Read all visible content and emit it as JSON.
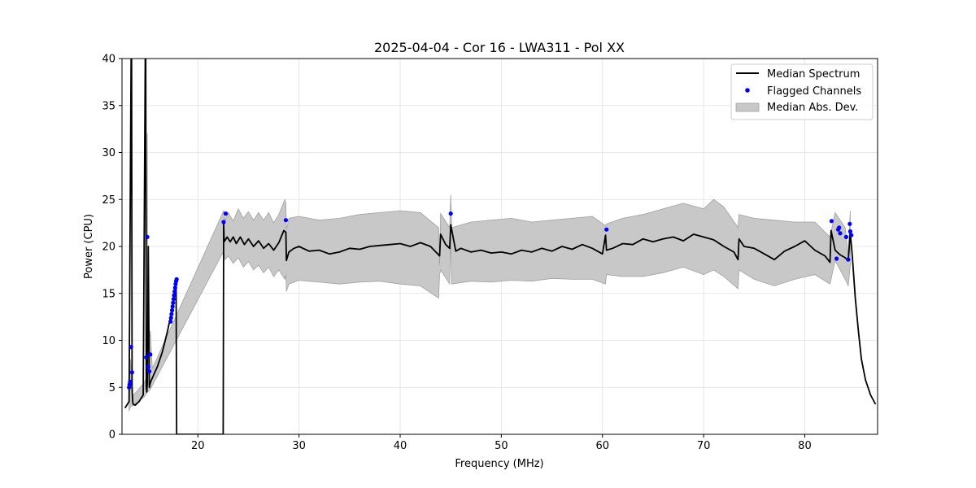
{
  "chart_data": {
    "type": "line",
    "title": "2025-04-04 - Cor 16 - LWA311 - Pol XX",
    "xlabel": "Frequency (MHz)",
    "ylabel": "Power (CPU)",
    "xlim": [
      12.5,
      87.2
    ],
    "ylim": [
      0,
      40
    ],
    "xticks": [
      20,
      30,
      40,
      50,
      60,
      70,
      80
    ],
    "yticks": [
      0,
      5,
      10,
      15,
      20,
      25,
      30,
      35,
      40
    ],
    "grid": true,
    "legend_position": "top-right",
    "legend": [
      "Median Spectrum",
      "Flagged Channels",
      "Median Abs. Dev."
    ],
    "colors": {
      "median": "#000000",
      "flagged": "#0000ff",
      "mad_fill": "#c8c8c8",
      "mad_edge": "#a0a0a0"
    },
    "series": [
      {
        "name": "Median Spectrum",
        "type": "line",
        "x": [
          12.8,
          13.2,
          13.4,
          13.45,
          13.5,
          13.55,
          13.6,
          13.8,
          14.2,
          14.6,
          14.8,
          14.85,
          14.9,
          14.95,
          15.0,
          15.1,
          15.2,
          15.3,
          15.5,
          16.0,
          16.5,
          17.0,
          17.4,
          17.7,
          17.85,
          17.9,
          17.95,
          20.0,
          22.5,
          22.55,
          22.6,
          22.9,
          23.2,
          23.5,
          23.8,
          24.2,
          24.6,
          25.0,
          25.5,
          26.0,
          26.5,
          27.0,
          27.5,
          28.0,
          28.5,
          28.7,
          28.75,
          29.0,
          29.5,
          30.0,
          31.0,
          32.0,
          33.0,
          34.0,
          35.0,
          36.0,
          37.0,
          38.0,
          39.0,
          40.0,
          41.0,
          42.0,
          43.0,
          43.9,
          44.0,
          44.5,
          44.9,
          45.0,
          45.5,
          46.0,
          47.0,
          48.0,
          49.0,
          50.0,
          51.0,
          52.0,
          53.0,
          54.0,
          55.0,
          56.0,
          57.0,
          58.0,
          59.0,
          60.0,
          60.3,
          60.4,
          61.0,
          62.0,
          63.0,
          64.0,
          65.0,
          66.0,
          67.0,
          68.0,
          69.0,
          70.0,
          71.0,
          72.0,
          73.0,
          73.4,
          73.5,
          74.0,
          75.0,
          76.0,
          77.0,
          78.0,
          79.0,
          80.0,
          81.0,
          82.0,
          82.5,
          82.6,
          83.0,
          83.5,
          84.0,
          84.3,
          84.5,
          84.7,
          85.0,
          85.3,
          85.6,
          86.0,
          86.5,
          87.0
        ],
        "y": [
          2.8,
          3.5,
          40,
          40,
          5.0,
          3.5,
          3.2,
          3.1,
          3.5,
          4.2,
          40,
          40,
          5.0,
          4.5,
          5.5,
          20.0,
          5.0,
          5.5,
          6.0,
          7.2,
          8.8,
          11.0,
          13.0,
          15.0,
          16.2,
          0,
          0,
          0,
          0,
          22.5,
          20.5,
          21.0,
          20.5,
          21.0,
          20.3,
          21.0,
          20.2,
          20.8,
          20.0,
          20.6,
          19.8,
          20.3,
          19.6,
          20.4,
          21.7,
          21.5,
          18.5,
          19.4,
          19.8,
          20.0,
          19.5,
          19.6,
          19.2,
          19.4,
          19.8,
          19.7,
          20.0,
          20.1,
          20.2,
          20.3,
          20.0,
          20.4,
          20.0,
          19.0,
          21.3,
          20.2,
          19.8,
          22.3,
          19.5,
          19.8,
          19.4,
          19.6,
          19.3,
          19.4,
          19.2,
          19.6,
          19.4,
          19.8,
          19.5,
          20.0,
          19.7,
          20.2,
          19.8,
          19.2,
          21.2,
          19.6,
          19.8,
          20.3,
          20.2,
          20.8,
          20.5,
          20.8,
          21.0,
          20.6,
          21.3,
          21.0,
          20.7,
          20.0,
          19.4,
          18.6,
          20.8,
          20.0,
          19.8,
          19.2,
          18.6,
          19.5,
          20.0,
          20.6,
          19.6,
          19.0,
          18.3,
          21.7,
          19.6,
          19.1,
          18.8,
          18.5,
          21.5,
          19.0,
          14.5,
          11.0,
          8.0,
          5.8,
          4.2,
          3.2
        ],
        "line_width": 1.8
      },
      {
        "name": "Flagged Channels",
        "type": "scatter",
        "x": [
          13.2,
          13.25,
          13.3,
          13.4,
          13.5,
          14.9,
          15.0,
          15.1,
          15.2,
          15.3,
          17.3,
          17.35,
          17.4,
          17.45,
          17.5,
          17.55,
          17.6,
          17.65,
          17.7,
          17.75,
          17.8,
          17.85,
          17.9,
          22.55,
          22.75,
          28.7,
          45.0,
          60.4,
          82.65,
          83.15,
          83.3,
          83.4,
          83.5,
          84.1,
          84.3,
          84.45,
          84.5,
          84.6
        ],
        "y": [
          5.0,
          5.3,
          5.6,
          9.3,
          6.6,
          8.2,
          21.0,
          7.2,
          6.7,
          8.5,
          12.0,
          12.4,
          12.8,
          13.2,
          13.6,
          14.0,
          14.4,
          14.8,
          15.2,
          15.6,
          16.0,
          16.3,
          16.5,
          22.6,
          23.5,
          22.8,
          23.5,
          21.8,
          22.7,
          18.7,
          21.8,
          22.0,
          21.4,
          21.0,
          18.6,
          22.4,
          21.6,
          21.2
        ]
      },
      {
        "name": "Median Abs. Dev.",
        "type": "band",
        "x": [
          13.2,
          13.35,
          13.5,
          14.7,
          14.9,
          15.0,
          15.05,
          15.3,
          15.5,
          22.55,
          22.7,
          23.0,
          23.5,
          24.0,
          24.5,
          25.0,
          25.5,
          26.0,
          26.5,
          27.0,
          27.5,
          28.0,
          28.6,
          28.7,
          28.75,
          29.0,
          30.0,
          32.0,
          34.0,
          36.0,
          38.0,
          40.0,
          42.0,
          43.8,
          43.9,
          44.0,
          44.9,
          45.0,
          45.1,
          47.0,
          49.0,
          51.0,
          53.0,
          55.0,
          57.0,
          59.0,
          60.3,
          60.4,
          62.0,
          64.0,
          66.0,
          67.0,
          68.0,
          70.0,
          71.0,
          72.0,
          73.4,
          73.5,
          75.0,
          77.0,
          79.0,
          81.0,
          82.5,
          83.0,
          84.0,
          84.3,
          84.5
        ],
        "upper": [
          3.5,
          8.0,
          4.0,
          5.5,
          6.0,
          32.0,
          8.0,
          11.0,
          7.0,
          23.8,
          22.8,
          23.6,
          22.7,
          24.0,
          23.0,
          23.7,
          22.8,
          23.6,
          22.8,
          23.6,
          22.5,
          23.4,
          25.0,
          24.6,
          21.8,
          23.0,
          23.2,
          22.8,
          23.0,
          23.4,
          23.6,
          23.8,
          23.6,
          22.0,
          18.0,
          23.5,
          22.0,
          25.5,
          22.0,
          22.6,
          22.8,
          23.0,
          22.6,
          22.8,
          23.0,
          23.2,
          22.2,
          22.4,
          23.0,
          23.4,
          24.0,
          24.3,
          24.6,
          24.0,
          25.0,
          24.2,
          22.0,
          23.4,
          23.0,
          22.8,
          22.6,
          22.6,
          21.0,
          23.6,
          22.0,
          19.0,
          23.8
        ],
        "lower": [
          2.5,
          3.0,
          3.0,
          4.0,
          4.3,
          4.5,
          4.5,
          4.8,
          5.2,
          19.5,
          18.6,
          19.0,
          18.2,
          18.8,
          17.8,
          18.4,
          17.5,
          18.0,
          17.2,
          17.8,
          16.8,
          17.5,
          16.5,
          17.0,
          15.2,
          16.0,
          16.4,
          16.2,
          16.0,
          16.2,
          16.3,
          16.0,
          15.8,
          14.5,
          17.0,
          17.5,
          16.0,
          21.0,
          16.0,
          16.3,
          16.2,
          16.4,
          16.3,
          16.6,
          16.5,
          16.5,
          16.0,
          17.0,
          16.8,
          16.8,
          17.2,
          17.5,
          17.8,
          17.0,
          17.5,
          16.8,
          15.5,
          17.5,
          16.5,
          15.8,
          16.5,
          17.0,
          16.0,
          18.5,
          16.5,
          15.8,
          18.0
        ]
      }
    ]
  }
}
